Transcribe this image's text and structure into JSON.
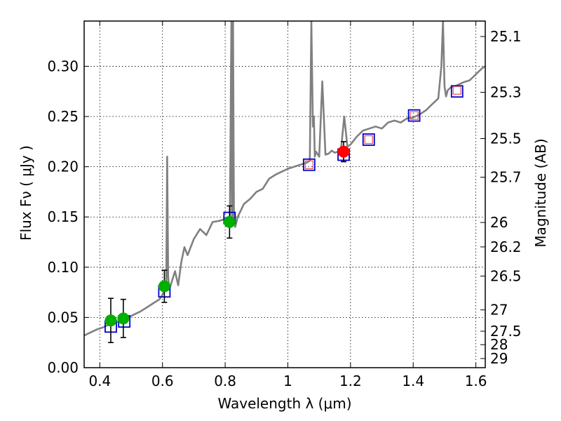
{
  "chart_data": {
    "type": "scatter",
    "xlabel": "Wavelength  λ (μm)",
    "ylabel": "Flux  Fν  ( μJy )",
    "ylabel_right": "Magnitude (AB)",
    "xlim": [
      0.35,
      1.63
    ],
    "ylim": [
      0,
      0.345
    ],
    "grid": true,
    "x_ticks": [
      0.4,
      0.6,
      0.8,
      1.0,
      1.2,
      1.4,
      1.6
    ],
    "x_tick_labels": [
      "0.4",
      "0.6",
      "0.8",
      "1",
      "1.2",
      "1.4",
      "1.6"
    ],
    "y_ticks": [
      0,
      0.05,
      0.1,
      0.15,
      0.2,
      0.25,
      0.3
    ],
    "y_tick_labels": [
      "0.00",
      "0.05",
      "0.10",
      "0.15",
      "0.20",
      "0.25",
      "0.30"
    ],
    "mag_ticks": [
      {
        "label": "25.1",
        "flux": 0.3296
      },
      {
        "label": "25.3",
        "flux": 0.2741
      },
      {
        "label": "25.5",
        "flux": 0.228
      },
      {
        "label": "25.7",
        "flux": 0.1896
      },
      {
        "label": "26",
        "flux": 0.1445
      },
      {
        "label": "26.2",
        "flux": 0.1202
      },
      {
        "label": "26.5",
        "flux": 0.0912
      },
      {
        "label": "27",
        "flux": 0.0575
      },
      {
        "label": "27.5",
        "flux": 0.0363
      },
      {
        "label": "28",
        "flux": 0.0229
      },
      {
        "label": "29",
        "flux": 0.0091
      }
    ],
    "series": [
      {
        "kind": "spectrum",
        "color": "#808080",
        "x": [
          0.35,
          0.37,
          0.39,
          0.41,
          0.43,
          0.45,
          0.47,
          0.49,
          0.51,
          0.53,
          0.55,
          0.57,
          0.59,
          0.605,
          0.612,
          0.615,
          0.618,
          0.622,
          0.63,
          0.64,
          0.65,
          0.66,
          0.67,
          0.68,
          0.7,
          0.72,
          0.74,
          0.76,
          0.78,
          0.8,
          0.815,
          0.82,
          0.822,
          0.825,
          0.828,
          0.832,
          0.84,
          0.86,
          0.88,
          0.9,
          0.92,
          0.94,
          0.96,
          0.98,
          1.0,
          1.02,
          1.04,
          1.06,
          1.07,
          1.075,
          1.08,
          1.083,
          1.086,
          1.09,
          1.1,
          1.11,
          1.12,
          1.13,
          1.14,
          1.15,
          1.16,
          1.17,
          1.18,
          1.19,
          1.2,
          1.22,
          1.24,
          1.26,
          1.28,
          1.3,
          1.32,
          1.34,
          1.36,
          1.38,
          1.4,
          1.42,
          1.44,
          1.46,
          1.48,
          1.49,
          1.495,
          1.5,
          1.505,
          1.51,
          1.52,
          1.54,
          1.56,
          1.58,
          1.6,
          1.62,
          1.63
        ],
        "y": [
          0.032,
          0.035,
          0.038,
          0.04,
          0.043,
          0.045,
          0.047,
          0.05,
          0.053,
          0.056,
          0.06,
          0.064,
          0.068,
          0.075,
          0.082,
          0.21,
          0.09,
          0.078,
          0.086,
          0.096,
          0.082,
          0.105,
          0.12,
          0.112,
          0.128,
          0.138,
          0.132,
          0.145,
          0.146,
          0.148,
          0.147,
          0.345,
          0.15,
          0.345,
          0.15,
          0.14,
          0.15,
          0.163,
          0.168,
          0.175,
          0.178,
          0.188,
          0.192,
          0.195,
          0.198,
          0.2,
          0.202,
          0.204,
          0.206,
          0.345,
          0.24,
          0.25,
          0.21,
          0.215,
          0.21,
          0.285,
          0.212,
          0.213,
          0.216,
          0.214,
          0.215,
          0.218,
          0.25,
          0.22,
          0.222,
          0.23,
          0.236,
          0.238,
          0.24,
          0.238,
          0.244,
          0.246,
          0.244,
          0.248,
          0.249,
          0.252,
          0.256,
          0.262,
          0.268,
          0.3,
          0.345,
          0.28,
          0.27,
          0.276,
          0.279,
          0.281,
          0.284,
          0.286,
          0.292,
          0.298,
          0.3
        ]
      },
      {
        "kind": "observed_green",
        "color": "#00b000",
        "points": [
          {
            "x": 0.435,
            "y": 0.047,
            "err": 0.022
          },
          {
            "x": 0.475,
            "y": 0.049,
            "err": 0.019
          },
          {
            "x": 0.606,
            "y": 0.081,
            "err": 0.016
          },
          {
            "x": 0.814,
            "y": 0.145,
            "err": 0.016
          }
        ]
      },
      {
        "kind": "observed_red",
        "color": "#ff0000",
        "points": [
          {
            "x": 1.178,
            "y": 0.215,
            "err": 0.01
          }
        ]
      },
      {
        "kind": "model_blue_squares",
        "color": "#0000cc",
        "points": [
          {
            "x": 0.435,
            "y": 0.041
          },
          {
            "x": 0.478,
            "y": 0.046
          },
          {
            "x": 0.606,
            "y": 0.076
          },
          {
            "x": 0.814,
            "y": 0.149
          },
          {
            "x": 1.068,
            "y": 0.202
          },
          {
            "x": 1.178,
            "y": 0.212
          },
          {
            "x": 1.258,
            "y": 0.227
          },
          {
            "x": 1.403,
            "y": 0.251
          },
          {
            "x": 1.54,
            "y": 0.275
          }
        ]
      },
      {
        "kind": "model_red_squares",
        "color": "#e06060",
        "points": [
          {
            "x": 1.068,
            "y": 0.202
          },
          {
            "x": 1.258,
            "y": 0.227
          },
          {
            "x": 1.403,
            "y": 0.251
          },
          {
            "x": 1.54,
            "y": 0.276
          }
        ]
      }
    ]
  }
}
